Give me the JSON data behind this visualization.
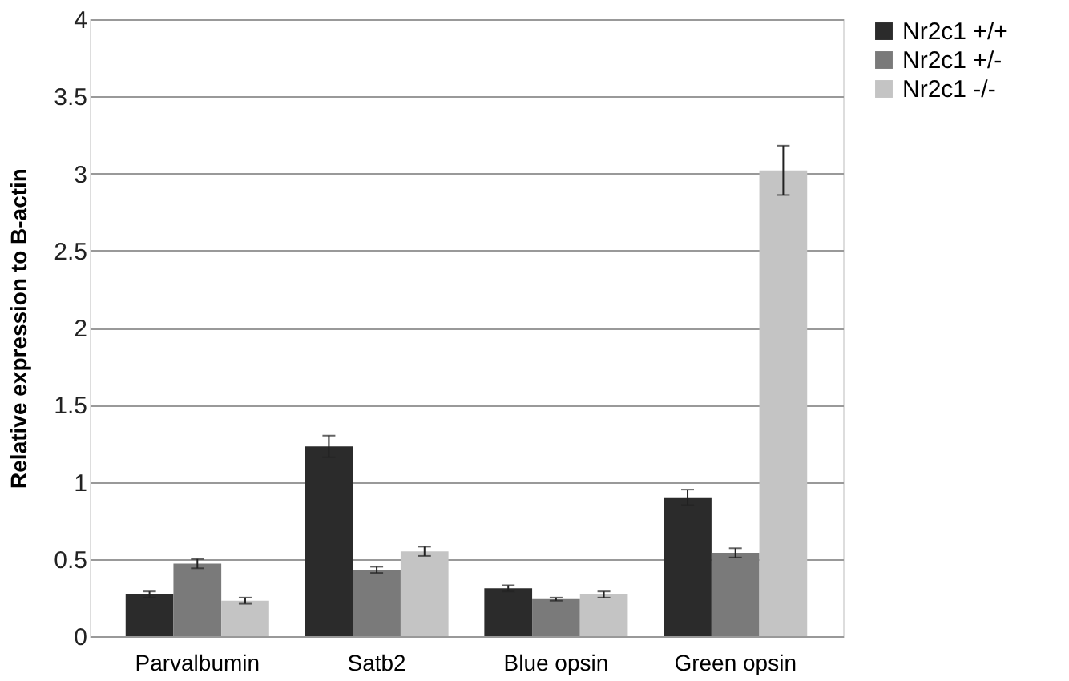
{
  "chart_data": {
    "type": "bar",
    "ylabel": "Relative expression to B-actin",
    "categories": [
      "Parvalbumin",
      "Satb2",
      "Blue opsin",
      "Green opsin"
    ],
    "series": [
      {
        "name": "Nr2c1 +/+",
        "color": "#2b2b2b",
        "values": [
          0.27,
          1.23,
          0.31,
          0.9
        ],
        "errors": [
          0.02,
          0.07,
          0.02,
          0.05
        ]
      },
      {
        "name": "Nr2c1 +/-",
        "color": "#7a7a7a",
        "values": [
          0.47,
          0.43,
          0.24,
          0.54
        ],
        "errors": [
          0.03,
          0.02,
          0.01,
          0.03
        ]
      },
      {
        "name": "Nr2c1 -/-",
        "color": "#c4c4c4",
        "values": [
          0.23,
          0.55,
          0.27,
          3.02
        ],
        "errors": [
          0.02,
          0.03,
          0.02,
          0.16
        ]
      }
    ],
    "ylim": [
      0,
      4
    ],
    "yticks": [
      0,
      0.5,
      1,
      1.5,
      2,
      2.5,
      3,
      3.5,
      4
    ],
    "grid": "y",
    "legend": "right"
  }
}
